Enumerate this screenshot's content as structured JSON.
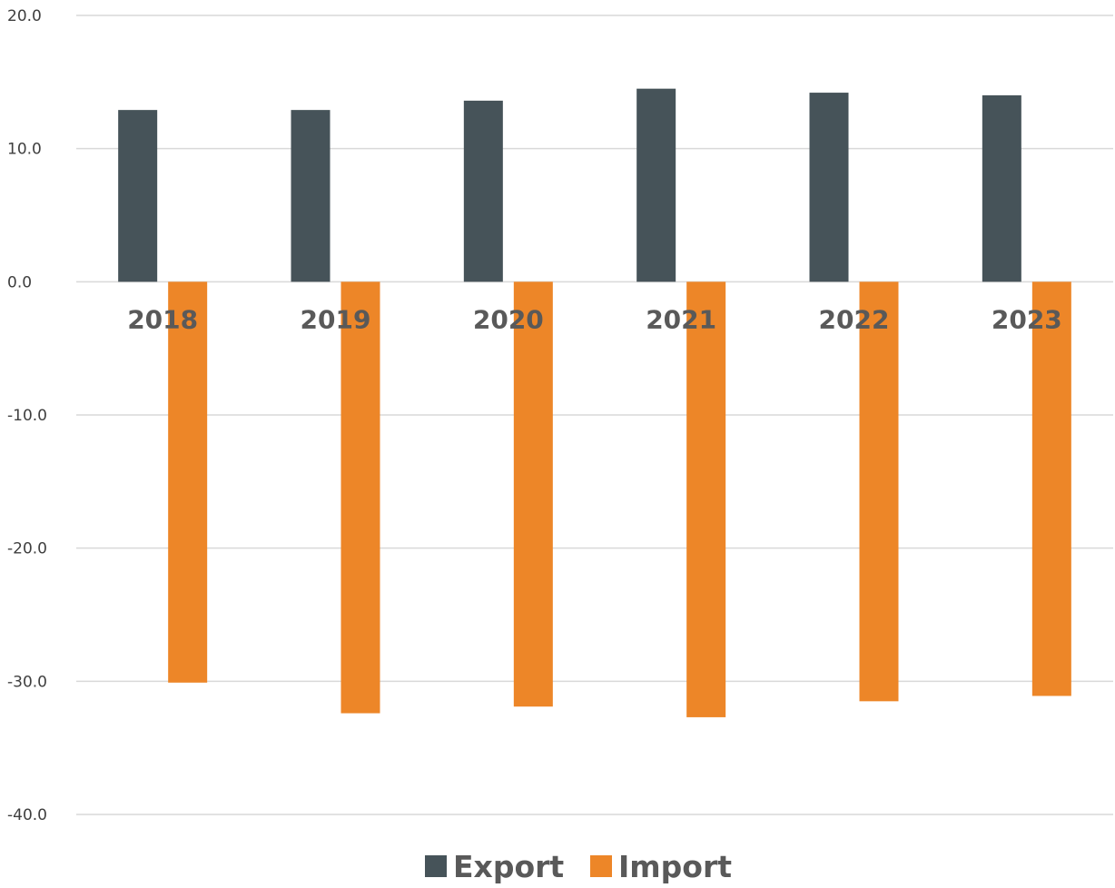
{
  "chart_data": {
    "type": "bar",
    "categories": [
      "2018",
      "2019",
      "2020",
      "2021",
      "2022",
      "2023"
    ],
    "series": [
      {
        "name": "Export",
        "color": "#465359",
        "values": [
          12.9,
          12.9,
          13.6,
          14.5,
          14.2,
          14.0
        ]
      },
      {
        "name": "Import",
        "color": "#ed8628",
        "values": [
          -30.1,
          -32.4,
          -31.9,
          -32.7,
          -31.5,
          -31.1
        ]
      }
    ],
    "ylim": [
      -40,
      20
    ],
    "yticks": [
      20,
      10,
      0,
      -10,
      -20,
      -30,
      -40
    ],
    "ytick_labels": [
      "20.0",
      "10.0",
      "0.0",
      "-10.0",
      "-20.0",
      "-30.0",
      "-40.0"
    ],
    "grid": true,
    "legend": "bottom"
  }
}
